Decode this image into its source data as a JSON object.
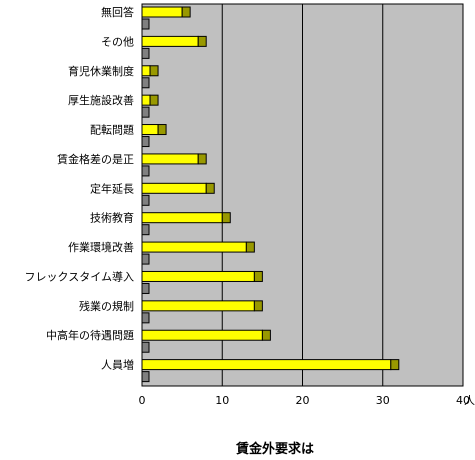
{
  "chart_data": {
    "type": "bar",
    "orientation": "horizontal",
    "title": "賃金外要求は",
    "unit": "人",
    "categories": [
      "無回答",
      "その他",
      "育児休業制度",
      "厚生施設改善",
      "配転問題",
      "賃金格差の是正",
      "定年延長",
      "技術教育",
      "作業環境改善",
      "フレックスタイム導入",
      "残業の規制",
      "中高年の待遇問題",
      "人員増"
    ],
    "values": [
      6,
      8,
      2,
      2,
      3,
      8,
      9,
      11,
      14,
      15,
      15,
      16,
      32
    ],
    "xlim": [
      0,
      40
    ],
    "xticks": [
      "0",
      "10",
      "20",
      "30",
      "40"
    ],
    "grid": "vertical",
    "legend": "none",
    "colors": {
      "bar_fill": "#ffff00",
      "bar_end": "#999900",
      "bar_stroke": "#000000",
      "plot_bg": "#c0c0c0",
      "small_bar": "#808080"
    }
  }
}
